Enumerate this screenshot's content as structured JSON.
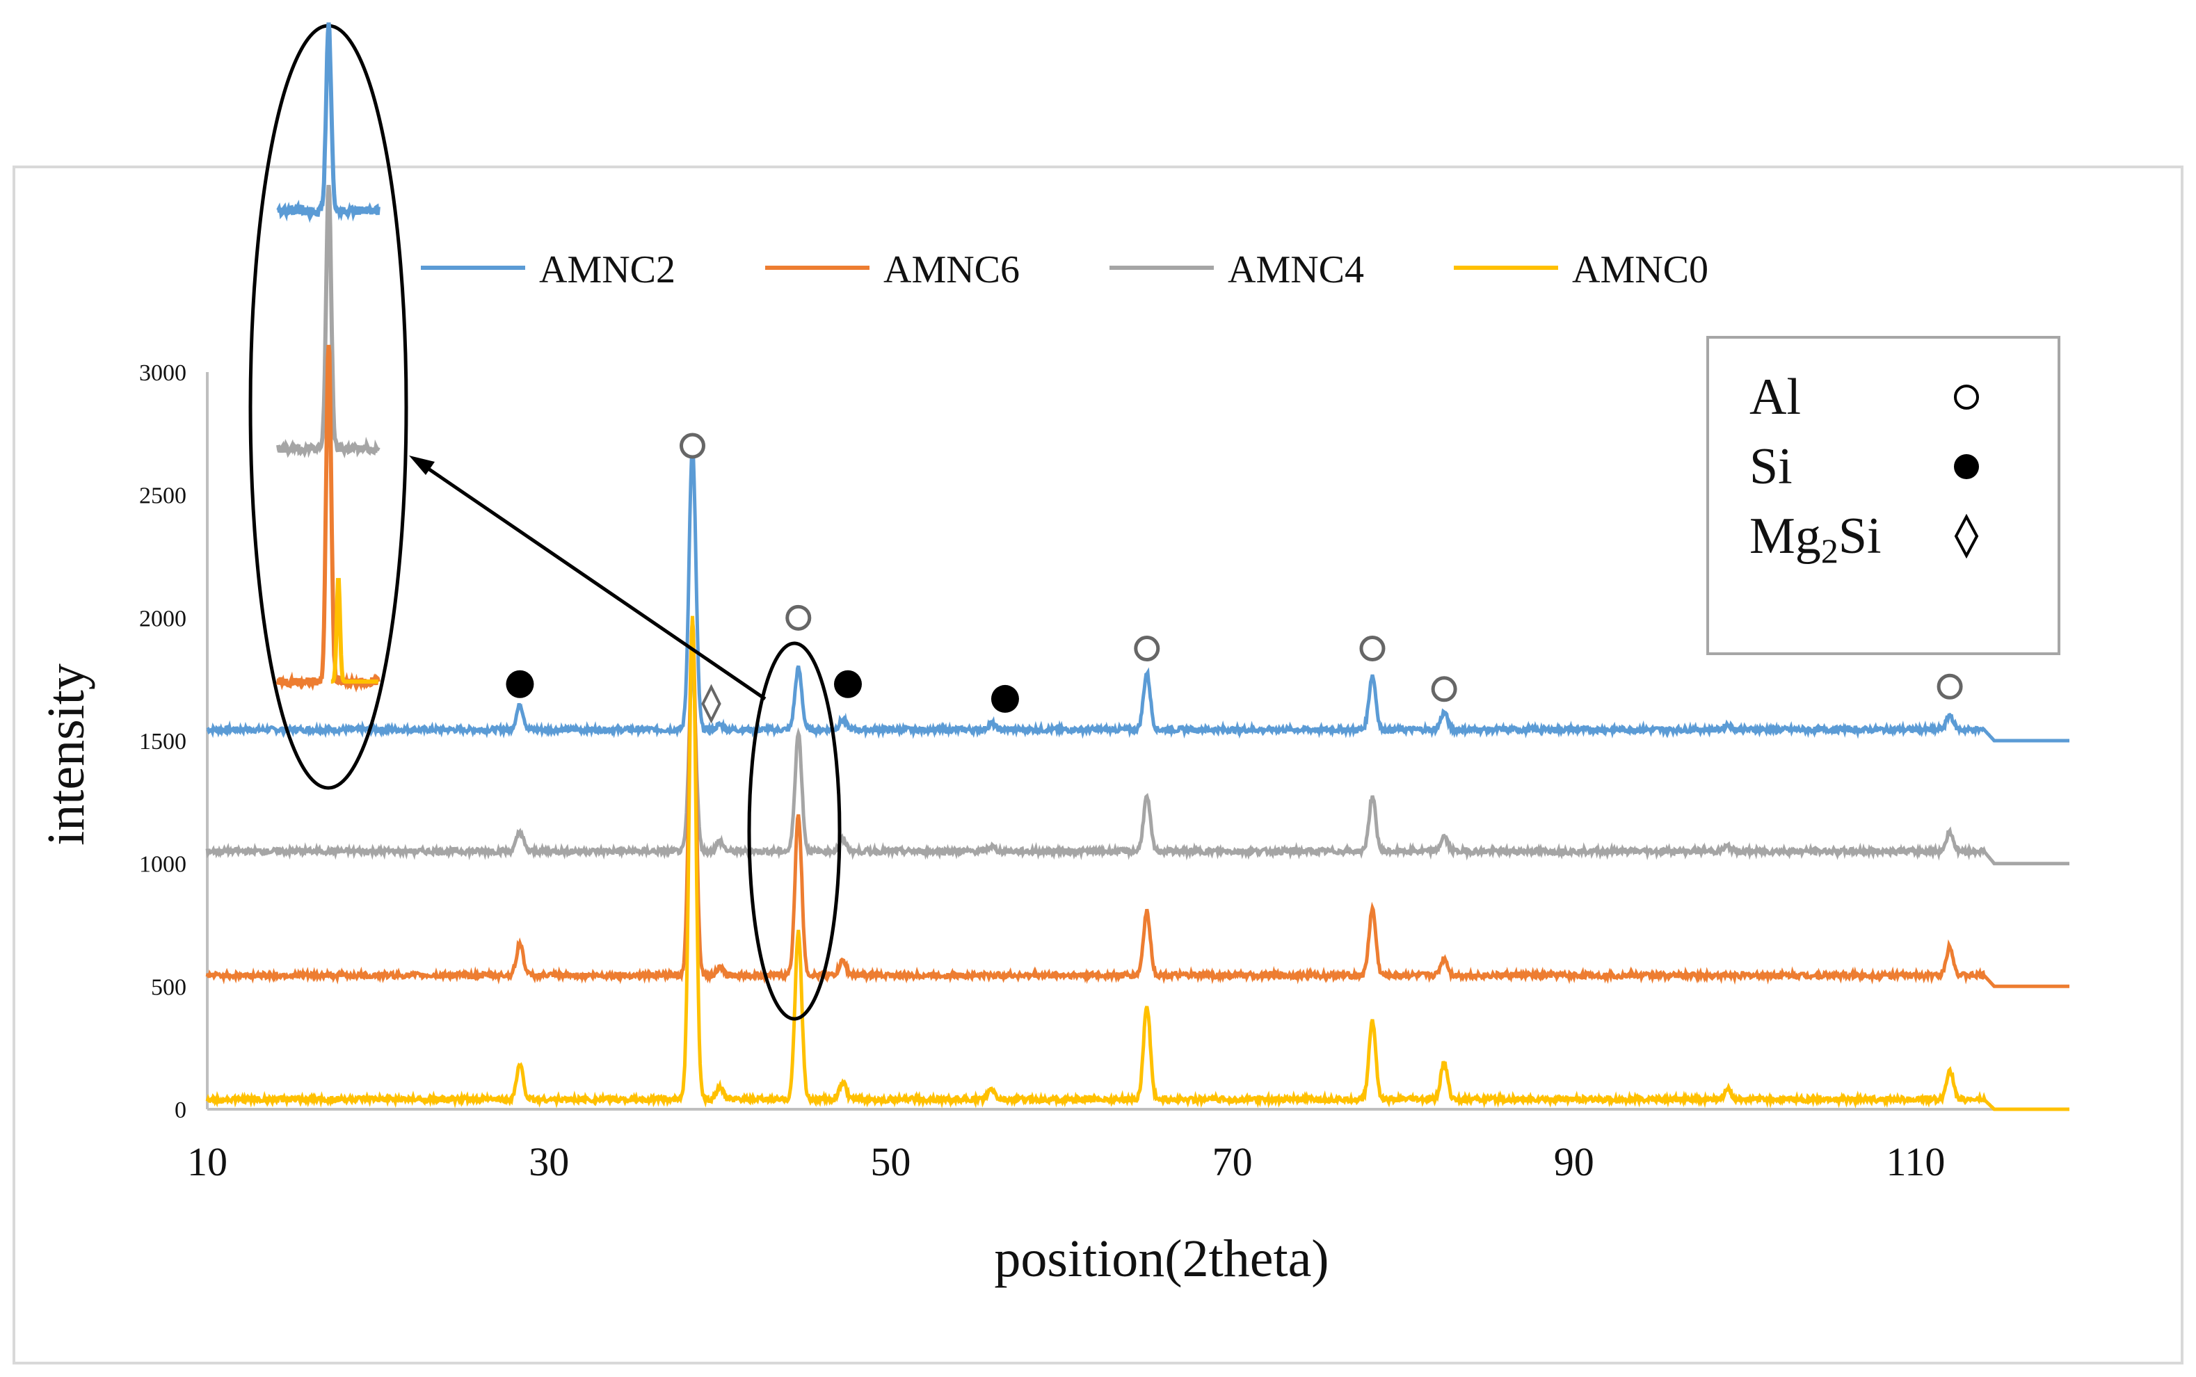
{
  "chart_data": {
    "type": "line",
    "title": "",
    "xlabel": "position(2theta)",
    "ylabel": "intensity",
    "xlim": [
      10,
      119
    ],
    "ylim": [
      0,
      3000
    ],
    "x_ticks": [
      10,
      30,
      50,
      70,
      90,
      110
    ],
    "y_ticks": [
      0,
      500,
      1000,
      1500,
      2000,
      2500,
      3000
    ],
    "x_tick_labels": [
      "10",
      "30",
      "50",
      "70",
      "90",
      "110"
    ],
    "y_tick_labels": [
      "0",
      "500",
      "1000",
      "1500",
      "2000",
      "2500",
      "3000"
    ],
    "legend_position": "top",
    "series": [
      {
        "name": "AMNC2",
        "color": "#5B9BD5",
        "baseline": 1545,
        "end_value": 1500,
        "peaks": [
          [
            28.3,
            100
          ],
          [
            38.4,
            1150
          ],
          [
            40.0,
            20
          ],
          [
            44.6,
            250
          ],
          [
            47.2,
            40
          ],
          [
            55.9,
            25
          ],
          [
            65.0,
            230
          ],
          [
            78.2,
            220
          ],
          [
            82.4,
            70
          ],
          [
            99.0,
            20
          ],
          [
            112.0,
            60
          ]
        ]
      },
      {
        "name": "AMNC6",
        "color": "#ED7D31",
        "baseline": 545,
        "end_value": 500,
        "peaks": [
          [
            28.3,
            130
          ],
          [
            38.4,
            1450
          ],
          [
            40.0,
            30
          ],
          [
            44.6,
            650
          ],
          [
            47.2,
            60
          ],
          [
            65.0,
            260
          ],
          [
            78.2,
            270
          ],
          [
            82.4,
            70
          ],
          [
            112.0,
            120
          ]
        ]
      },
      {
        "name": "AMNC4",
        "color": "#A5A5A5",
        "baseline": 1050,
        "end_value": 1000,
        "peaks": [
          [
            28.3,
            80
          ],
          [
            38.4,
            750
          ],
          [
            40.0,
            40
          ],
          [
            44.6,
            480
          ],
          [
            47.2,
            50
          ],
          [
            55.9,
            20
          ],
          [
            65.0,
            220
          ],
          [
            78.2,
            220
          ],
          [
            82.4,
            60
          ],
          [
            99.0,
            20
          ],
          [
            112.0,
            80
          ]
        ]
      },
      {
        "name": "AMNC0",
        "color": "#FFC000",
        "baseline": 40,
        "end_value": 0,
        "peaks": [
          [
            28.3,
            140
          ],
          [
            38.4,
            1960
          ],
          [
            40.0,
            50
          ],
          [
            44.6,
            680
          ],
          [
            47.2,
            70
          ],
          [
            55.9,
            40
          ],
          [
            65.0,
            380
          ],
          [
            78.2,
            320
          ],
          [
            82.4,
            150
          ],
          [
            99.0,
            40
          ],
          [
            112.0,
            120
          ]
        ]
      }
    ],
    "peak_markers": [
      {
        "phase": "Al",
        "x": 38.4,
        "y": 2700
      },
      {
        "phase": "Al",
        "x": 44.6,
        "y": 2000
      },
      {
        "phase": "Al",
        "x": 65.0,
        "y": 1875
      },
      {
        "phase": "Al",
        "x": 78.2,
        "y": 1875
      },
      {
        "phase": "Al",
        "x": 82.4,
        "y": 1710
      },
      {
        "phase": "Al",
        "x": 112.0,
        "y": 1720
      },
      {
        "phase": "Si",
        "x": 28.3,
        "y": 1730
      },
      {
        "phase": "Si",
        "x": 47.5,
        "y": 1730
      },
      {
        "phase": "Si",
        "x": 56.7,
        "y": 1670
      },
      {
        "phase": "Mg2Si",
        "x": 39.5,
        "y": 1650
      }
    ],
    "phase_legend": [
      {
        "label": "Al",
        "symbol": "open-circle"
      },
      {
        "label": "Si",
        "symbol": "filled-circle"
      },
      {
        "label": "Mg",
        "sub": "2",
        "suffix": "Si",
        "symbol": "diamond"
      }
    ],
    "inset": {
      "description_label": "zoom of 44.6 peak",
      "center_x": 44.6
    }
  }
}
